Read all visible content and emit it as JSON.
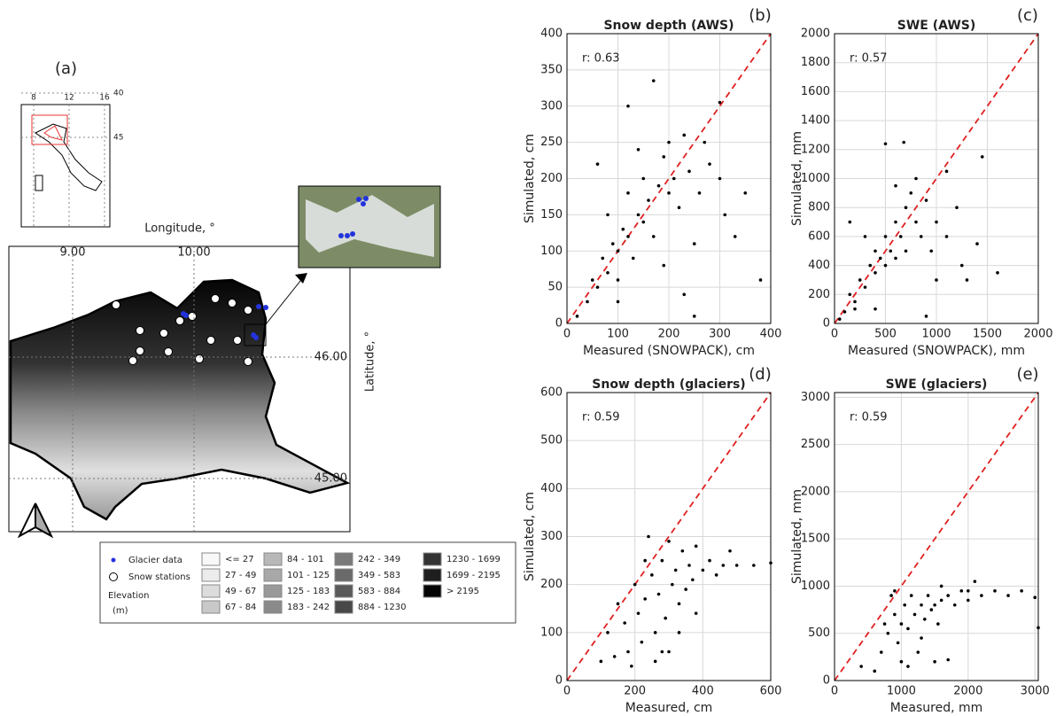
{
  "chart_data": [
    {
      "type": "scatter",
      "panel_label": "(b)",
      "title": "Snow depth (AWS)",
      "annotation": "r: 0.63",
      "x_label": "Measured (SNOWPACK), cm",
      "y_label": "Simulated, cm",
      "color": "#000000",
      "grid": true,
      "xlim": [
        0,
        400
      ],
      "ylim": [
        0,
        400
      ],
      "xticks": [
        0,
        100,
        200,
        300,
        400
      ],
      "yticks": [
        0,
        50,
        100,
        150,
        200,
        250,
        300,
        350,
        400
      ],
      "x": [
        20,
        40,
        50,
        60,
        70,
        80,
        90,
        100,
        100,
        110,
        120,
        120,
        130,
        140,
        150,
        150,
        160,
        170,
        180,
        190,
        200,
        200,
        210,
        220,
        230,
        240,
        250,
        260,
        270,
        280,
        300,
        310,
        330,
        350,
        380,
        120,
        170,
        60,
        100,
        250,
        300,
        80,
        140,
        190,
        230
      ],
      "values": [
        10,
        30,
        60,
        50,
        90,
        70,
        110,
        100,
        60,
        130,
        120,
        180,
        90,
        150,
        140,
        200,
        170,
        120,
        190,
        230,
        180,
        250,
        200,
        160,
        260,
        210,
        110,
        180,
        250,
        220,
        200,
        150,
        120,
        180,
        60,
        300,
        335,
        220,
        30,
        10,
        305,
        150,
        240,
        80,
        40
      ]
    },
    {
      "type": "scatter",
      "panel_label": "(c)",
      "title": "SWE (AWS)",
      "annotation": "r: 0.57",
      "x_label": "Measured (SNOWPACK), mm",
      "y_label": "Simulated, mm",
      "color": "#000000",
      "grid": true,
      "xlim": [
        0,
        2000
      ],
      "ylim": [
        0,
        2000
      ],
      "xticks": [
        0,
        500,
        1000,
        1500,
        2000
      ],
      "yticks": [
        0,
        200,
        400,
        600,
        800,
        1000,
        1200,
        1400,
        1600,
        1800,
        2000
      ],
      "x": [
        50,
        100,
        150,
        200,
        250,
        300,
        350,
        400,
        400,
        450,
        500,
        500,
        550,
        600,
        600,
        650,
        700,
        700,
        750,
        800,
        800,
        850,
        900,
        950,
        1000,
        1000,
        1100,
        1200,
        1250,
        1300,
        1400,
        1450,
        1600,
        500,
        680,
        300,
        200,
        400,
        900,
        1100,
        150,
        600
      ],
      "values": [
        30,
        80,
        200,
        150,
        300,
        250,
        400,
        350,
        500,
        450,
        400,
        600,
        500,
        700,
        450,
        600,
        800,
        500,
        900,
        700,
        1000,
        600,
        850,
        500,
        700,
        300,
        600,
        800,
        400,
        300,
        550,
        1150,
        350,
        1240,
        1250,
        600,
        100,
        100,
        50,
        1050,
        700,
        950
      ]
    },
    {
      "type": "scatter",
      "panel_label": "(d)",
      "title": "Snow depth (glaciers)",
      "annotation": "r: 0.59",
      "x_label": "Measured, cm",
      "y_label": "Simulated, cm",
      "color": "#000000",
      "grid": true,
      "xlim": [
        0,
        600
      ],
      "ylim": [
        0,
        600
      ],
      "xticks": [
        0,
        200,
        400,
        600
      ],
      "yticks": [
        0,
        100,
        200,
        300,
        400,
        500,
        600
      ],
      "x": [
        100,
        120,
        150,
        170,
        180,
        200,
        210,
        220,
        230,
        240,
        250,
        260,
        270,
        280,
        290,
        300,
        300,
        310,
        320,
        330,
        340,
        350,
        360,
        370,
        380,
        400,
        420,
        440,
        460,
        480,
        500,
        550,
        600,
        140,
        190,
        260,
        330,
        380,
        230,
        280
      ],
      "values": [
        40,
        100,
        160,
        120,
        60,
        200,
        140,
        80,
        170,
        300,
        220,
        100,
        180,
        250,
        130,
        290,
        60,
        200,
        230,
        160,
        270,
        190,
        240,
        210,
        280,
        230,
        250,
        220,
        240,
        270,
        240,
        240,
        245,
        50,
        30,
        40,
        100,
        140,
        250,
        60
      ]
    },
    {
      "type": "scatter",
      "panel_label": "(e)",
      "title": "SWE (glaciers)",
      "annotation": "r: 0.59",
      "x_label": "Measured, mm",
      "y_label": "Simulated, mm",
      "color": "#000000",
      "grid": true,
      "xlim": [
        0,
        3050
      ],
      "ylim": [
        0,
        3050
      ],
      "xticks": [
        0,
        1000,
        2000,
        3000
      ],
      "yticks": [
        0,
        500,
        1000,
        1500,
        2000,
        2500,
        3000
      ],
      "x": [
        400,
        600,
        700,
        750,
        800,
        850,
        900,
        950,
        1000,
        1000,
        1050,
        1100,
        1150,
        1200,
        1250,
        1300,
        1350,
        1400,
        1450,
        1500,
        1550,
        1600,
        1700,
        1800,
        1900,
        2000,
        2100,
        2200,
        2400,
        2600,
        2800,
        3000,
        1100,
        1500,
        1700,
        900,
        1300,
        1600,
        2000,
        3050
      ],
      "values": [
        150,
        100,
        300,
        600,
        500,
        900,
        700,
        400,
        600,
        200,
        800,
        550,
        900,
        700,
        300,
        800,
        650,
        900,
        750,
        800,
        600,
        850,
        900,
        800,
        950,
        850,
        1050,
        900,
        950,
        900,
        950,
        880,
        150,
        200,
        220,
        950,
        450,
        1000,
        950,
        560
      ]
    }
  ],
  "map": {
    "panel_label": "(a)",
    "x_label": "Longitude, °",
    "y_label": "Latitude, °",
    "xticks": [
      {
        "value": 9,
        "label": "9.00"
      },
      {
        "value": 10,
        "label": "10.00"
      }
    ],
    "yticks": [
      {
        "value": 46,
        "label": "46.00"
      },
      {
        "value": 45,
        "label": "45.00"
      }
    ],
    "inset_xticks": [
      8,
      12,
      16
    ],
    "inset_yticks": [
      45,
      40
    ],
    "legend": {
      "markers": [
        "Glacier data",
        "Snow stations"
      ],
      "elevation_title": "Elevation",
      "elevation_unit": "(m)",
      "classes": [
        {
          "label": "<= 27",
          "color": "#f8f8f8"
        },
        {
          "label": "27 - 49",
          "color": "#ececec"
        },
        {
          "label": "49 - 67",
          "color": "#dcdcdc"
        },
        {
          "label": "67 - 84",
          "color": "#c8c8c8"
        },
        {
          "label": "84 - 101",
          "color": "#b8b8b8"
        },
        {
          "label": "101 - 125",
          "color": "#a8a8a8"
        },
        {
          "label": "125 - 183",
          "color": "#999999"
        },
        {
          "label": "183 - 242",
          "color": "#8a8a8a"
        },
        {
          "label": "242 - 349",
          "color": "#7a7a7a"
        },
        {
          "label": "349 - 583",
          "color": "#6a6a6a"
        },
        {
          "label": "583 - 884",
          "color": "#5a5a5a"
        },
        {
          "label": "884 - 1230",
          "color": "#484848"
        },
        {
          "label": "1230 - 1699",
          "color": "#333333"
        },
        {
          "label": "1699 - 2195",
          "color": "#1e1e1e"
        },
        {
          "label": "> 2195",
          "color": "#050505"
        }
      ]
    }
  }
}
